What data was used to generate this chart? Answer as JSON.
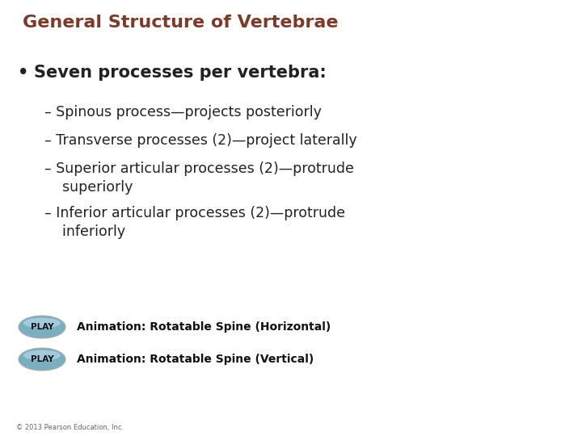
{
  "title": "General Structure of Vertebrae",
  "title_color": "#7B3B2A",
  "title_fontsize": 16,
  "background_color": "#FFFFFF",
  "bullet_text": "Seven processes per vertebra:",
  "bullet_fontsize": 15,
  "bullet_color": "#222222",
  "sub_items": [
    "– Spinous process—projects posteriorly",
    "– Transverse processes (2)—project laterally",
    "– Superior articular processes (2)—protrude\n    superiorly",
    "– Inferior articular processes (2)—protrude\n    inferiorly"
  ],
  "sub_fontsize": 12.5,
  "sub_color": "#222222",
  "play_button_color_main": "#7aafc0",
  "play_button_color_highlight": "#aad0e0",
  "play_button_text_color": "#111111",
  "play_button_text": "PLAY",
  "play_button_fontsize": 7.5,
  "animation_texts": [
    "Animation: Rotatable Spine (Horizontal)",
    "Animation: Rotatable Spine (Vertical)"
  ],
  "animation_fontsize": 10,
  "animation_color": "#111111",
  "copyright_text": "© 2013 Pearson Education, Inc.",
  "copyright_fontsize": 6,
  "copyright_color": "#666666"
}
